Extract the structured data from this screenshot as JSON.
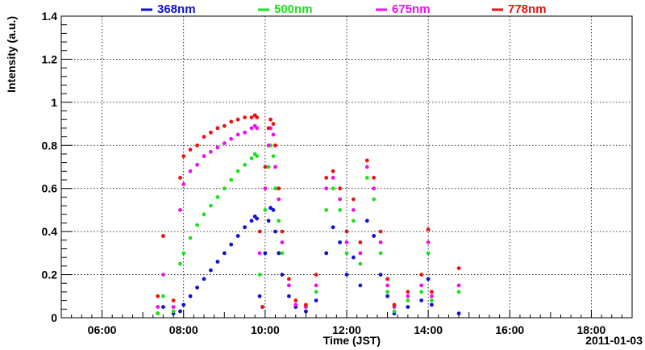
{
  "chart_data": {
    "type": "scatter",
    "title": "",
    "xlabel": "Time (JST)",
    "ylabel": "Intensity (a.u.)",
    "date_label": "2011-01-03",
    "xlim": [
      "05:00",
      "19:00"
    ],
    "ylim": [
      0,
      1.4
    ],
    "grid": true,
    "legend_position": "top",
    "x_ticks": [
      "06:00",
      "08:00",
      "10:00",
      "12:00",
      "14:00",
      "16:00",
      "18:00"
    ],
    "y_ticks": [
      "0",
      "0.2",
      "0.4",
      "0.6",
      "0.8",
      "1",
      "1.2",
      "1.4"
    ],
    "series": [
      {
        "name": "368nm",
        "color": "#1010d0",
        "points": [
          [
            "07:22",
            0.02
          ],
          [
            "07:30",
            0.05
          ],
          [
            "07:45",
            0.02
          ],
          [
            "07:55",
            0.03
          ],
          [
            "08:00",
            0.06
          ],
          [
            "08:10",
            0.1
          ],
          [
            "08:20",
            0.14
          ],
          [
            "08:30",
            0.18
          ],
          [
            "08:40",
            0.22
          ],
          [
            "08:50",
            0.26
          ],
          [
            "09:00",
            0.3
          ],
          [
            "09:10",
            0.34
          ],
          [
            "09:20",
            0.38
          ],
          [
            "09:30",
            0.42
          ],
          [
            "09:40",
            0.45
          ],
          [
            "09:45",
            0.47
          ],
          [
            "09:48",
            0.46
          ],
          [
            "09:52",
            0.1
          ],
          [
            "09:56",
            0.05
          ],
          [
            "10:00",
            0.3
          ],
          [
            "10:05",
            0.45
          ],
          [
            "10:08",
            0.51
          ],
          [
            "10:12",
            0.5
          ],
          [
            "10:15",
            0.4
          ],
          [
            "10:20",
            0.3
          ],
          [
            "10:25",
            0.2
          ],
          [
            "10:35",
            0.1
          ],
          [
            "10:45",
            0.05
          ],
          [
            "11:00",
            0.03
          ],
          [
            "11:15",
            0.08
          ],
          [
            "11:30",
            0.3
          ],
          [
            "11:40",
            0.42
          ],
          [
            "11:50",
            0.35
          ],
          [
            "12:00",
            0.2
          ],
          [
            "12:10",
            0.28
          ],
          [
            "12:20",
            0.15
          ],
          [
            "12:30",
            0.45
          ],
          [
            "12:40",
            0.38
          ],
          [
            "12:50",
            0.2
          ],
          [
            "13:00",
            0.1
          ],
          [
            "13:10",
            0.02
          ],
          [
            "13:30",
            0.05
          ],
          [
            "13:50",
            0.08
          ],
          [
            "14:00",
            0.18
          ],
          [
            "14:05",
            0.06
          ],
          [
            "14:45",
            0.02
          ]
        ]
      },
      {
        "name": "500nm",
        "color": "#20e020",
        "points": [
          [
            "07:22",
            0.02
          ],
          [
            "07:30",
            0.1
          ],
          [
            "07:45",
            0.03
          ],
          [
            "07:55",
            0.25
          ],
          [
            "08:00",
            0.3
          ],
          [
            "08:10",
            0.37
          ],
          [
            "08:20",
            0.43
          ],
          [
            "08:30",
            0.48
          ],
          [
            "08:40",
            0.52
          ],
          [
            "08:50",
            0.56
          ],
          [
            "09:00",
            0.6
          ],
          [
            "09:10",
            0.64
          ],
          [
            "09:20",
            0.68
          ],
          [
            "09:30",
            0.71
          ],
          [
            "09:40",
            0.74
          ],
          [
            "09:45",
            0.76
          ],
          [
            "09:48",
            0.75
          ],
          [
            "09:52",
            0.2
          ],
          [
            "09:56",
            0.05
          ],
          [
            "10:00",
            0.5
          ],
          [
            "10:05",
            0.7
          ],
          [
            "10:08",
            0.8
          ],
          [
            "10:12",
            0.75
          ],
          [
            "10:15",
            0.6
          ],
          [
            "10:20",
            0.45
          ],
          [
            "10:25",
            0.3
          ],
          [
            "10:35",
            0.15
          ],
          [
            "10:45",
            0.06
          ],
          [
            "11:00",
            0.05
          ],
          [
            "11:15",
            0.12
          ],
          [
            "11:30",
            0.5
          ],
          [
            "11:40",
            0.6
          ],
          [
            "11:50",
            0.5
          ],
          [
            "12:00",
            0.3
          ],
          [
            "12:10",
            0.45
          ],
          [
            "12:20",
            0.25
          ],
          [
            "12:30",
            0.65
          ],
          [
            "12:40",
            0.55
          ],
          [
            "12:50",
            0.3
          ],
          [
            "13:00",
            0.12
          ],
          [
            "13:10",
            0.03
          ],
          [
            "13:30",
            0.08
          ],
          [
            "13:50",
            0.12
          ],
          [
            "14:00",
            0.3
          ],
          [
            "14:05",
            0.08
          ],
          [
            "14:45",
            0.12
          ]
        ]
      },
      {
        "name": "675nm",
        "color": "#ee10ee",
        "points": [
          [
            "07:22",
            0.05
          ],
          [
            "07:30",
            0.2
          ],
          [
            "07:45",
            0.05
          ],
          [
            "07:55",
            0.5
          ],
          [
            "08:00",
            0.62
          ],
          [
            "08:10",
            0.68
          ],
          [
            "08:20",
            0.71
          ],
          [
            "08:30",
            0.75
          ],
          [
            "08:40",
            0.77
          ],
          [
            "08:50",
            0.79
          ],
          [
            "09:00",
            0.81
          ],
          [
            "09:10",
            0.83
          ],
          [
            "09:20",
            0.85
          ],
          [
            "09:30",
            0.86
          ],
          [
            "09:40",
            0.88
          ],
          [
            "09:45",
            0.89
          ],
          [
            "09:48",
            0.88
          ],
          [
            "09:52",
            0.3
          ],
          [
            "09:56",
            0.05
          ],
          [
            "10:00",
            0.6
          ],
          [
            "10:05",
            0.8
          ],
          [
            "10:08",
            0.88
          ],
          [
            "10:12",
            0.85
          ],
          [
            "10:15",
            0.7
          ],
          [
            "10:20",
            0.55
          ],
          [
            "10:25",
            0.35
          ],
          [
            "10:35",
            0.15
          ],
          [
            "10:45",
            0.06
          ],
          [
            "11:00",
            0.05
          ],
          [
            "11:15",
            0.15
          ],
          [
            "11:30",
            0.6
          ],
          [
            "11:40",
            0.65
          ],
          [
            "11:50",
            0.55
          ],
          [
            "12:00",
            0.35
          ],
          [
            "12:10",
            0.5
          ],
          [
            "12:20",
            0.3
          ],
          [
            "12:30",
            0.7
          ],
          [
            "12:40",
            0.6
          ],
          [
            "12:50",
            0.35
          ],
          [
            "13:00",
            0.15
          ],
          [
            "13:10",
            0.05
          ],
          [
            "13:30",
            0.1
          ],
          [
            "13:50",
            0.15
          ],
          [
            "14:00",
            0.35
          ],
          [
            "14:05",
            0.1
          ],
          [
            "14:45",
            0.15
          ]
        ]
      },
      {
        "name": "778nm",
        "color": "#ee1010",
        "points": [
          [
            "07:22",
            0.1
          ],
          [
            "07:30",
            0.38
          ],
          [
            "07:45",
            0.08
          ],
          [
            "07:55",
            0.65
          ],
          [
            "08:00",
            0.75
          ],
          [
            "08:10",
            0.78
          ],
          [
            "08:20",
            0.8
          ],
          [
            "08:30",
            0.84
          ],
          [
            "08:40",
            0.86
          ],
          [
            "08:50",
            0.88
          ],
          [
            "09:00",
            0.89
          ],
          [
            "09:10",
            0.91
          ],
          [
            "09:20",
            0.92
          ],
          [
            "09:30",
            0.93
          ],
          [
            "09:40",
            0.93
          ],
          [
            "09:45",
            0.94
          ],
          [
            "09:48",
            0.93
          ],
          [
            "09:52",
            0.4
          ],
          [
            "09:56",
            0.05
          ],
          [
            "10:00",
            0.7
          ],
          [
            "10:05",
            0.88
          ],
          [
            "10:08",
            0.92
          ],
          [
            "10:12",
            0.9
          ],
          [
            "10:15",
            0.8
          ],
          [
            "10:20",
            0.6
          ],
          [
            "10:25",
            0.4
          ],
          [
            "10:35",
            0.18
          ],
          [
            "10:45",
            0.08
          ],
          [
            "11:00",
            0.06
          ],
          [
            "11:15",
            0.2
          ],
          [
            "11:30",
            0.65
          ],
          [
            "11:40",
            0.68
          ],
          [
            "11:50",
            0.6
          ],
          [
            "12:00",
            0.4
          ],
          [
            "12:10",
            0.55
          ],
          [
            "12:20",
            0.35
          ],
          [
            "12:30",
            0.73
          ],
          [
            "12:40",
            0.65
          ],
          [
            "12:50",
            0.4
          ],
          [
            "13:00",
            0.18
          ],
          [
            "13:10",
            0.06
          ],
          [
            "13:30",
            0.12
          ],
          [
            "13:50",
            0.2
          ],
          [
            "14:00",
            0.41
          ],
          [
            "14:05",
            0.12
          ],
          [
            "14:45",
            0.23
          ]
        ]
      }
    ]
  }
}
